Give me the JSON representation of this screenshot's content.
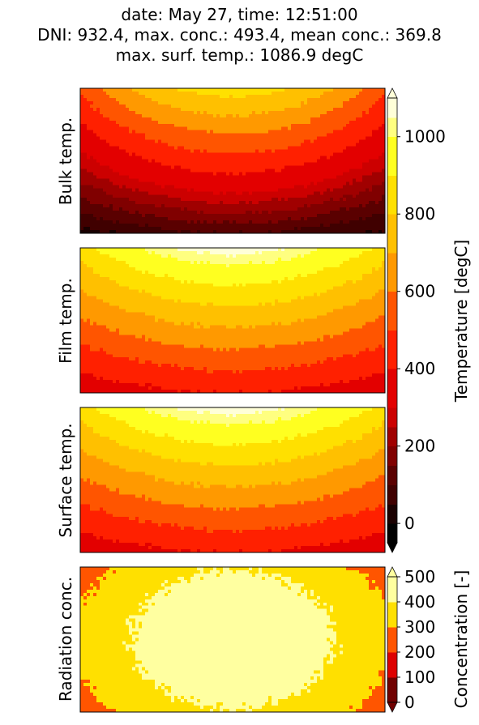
{
  "title_lines": [
    "date: May 27, time: 12:51:00",
    "DNI: 932.4, max. conc.: 493.4, mean conc.: 369.8",
    "max. surf. temp.: 1086.9 degC"
  ],
  "chart_data": [
    {
      "type": "heatmap",
      "name": "bulk-temperature",
      "ylabel": "Bulk temp.",
      "pattern": "inverted-arc",
      "center_value": 850,
      "edge_value": 520,
      "bottom_value": 100,
      "colorbar": "temperature"
    },
    {
      "type": "heatmap",
      "name": "film-temperature",
      "ylabel": "Film temp.",
      "pattern": "inverted-arc",
      "center_value": 1086.9,
      "edge_value": 860,
      "bottom_value": 400,
      "colorbar": "temperature"
    },
    {
      "type": "heatmap",
      "name": "surface-temperature",
      "ylabel": "Surface temp.",
      "pattern": "inverted-arc",
      "center_value": 1086.9,
      "edge_value": 860,
      "bottom_value": 400,
      "colorbar": "temperature"
    },
    {
      "type": "heatmap",
      "name": "radiation-concentration",
      "ylabel": "Radiation conc.",
      "pattern": "ellipse",
      "center_value": 493.4,
      "edge_value": 250,
      "colorbar": "concentration"
    }
  ],
  "colorbars": {
    "temperature": {
      "label": "Temperature [degC]",
      "levels": [
        -50,
        0,
        50,
        100,
        150,
        200,
        250,
        300,
        400,
        500,
        600,
        700,
        800,
        900,
        1000,
        1050,
        1100
      ],
      "range": [
        -50,
        1100
      ],
      "ticks": [
        0,
        200,
        400,
        600,
        800,
        1000
      ],
      "tick_labels": [
        "0",
        "200",
        "400",
        "600",
        "800",
        "1000"
      ],
      "colors": [
        "#000000",
        "#1a0000",
        "#400000",
        "#5a0000",
        "#800000",
        "#a00000",
        "#cc0000",
        "#e30000",
        "#ff2000",
        "#ff5500",
        "#ff9900",
        "#ffc000",
        "#ffe000",
        "#ffff20",
        "#ffff80",
        "#ffffd8"
      ]
    },
    "concentration": {
      "label": "Concentration [-]",
      "levels": [
        0,
        100,
        200,
        300,
        400,
        500
      ],
      "range": [
        0,
        500
      ],
      "ticks": [
        0,
        100,
        200,
        300,
        400,
        500
      ],
      "tick_labels": [
        "0",
        "100",
        "200",
        "300",
        "400",
        "500"
      ],
      "colors": [
        "#700000",
        "#dd0000",
        "#ff5500",
        "#ffe000",
        "#ffffa0"
      ]
    }
  }
}
